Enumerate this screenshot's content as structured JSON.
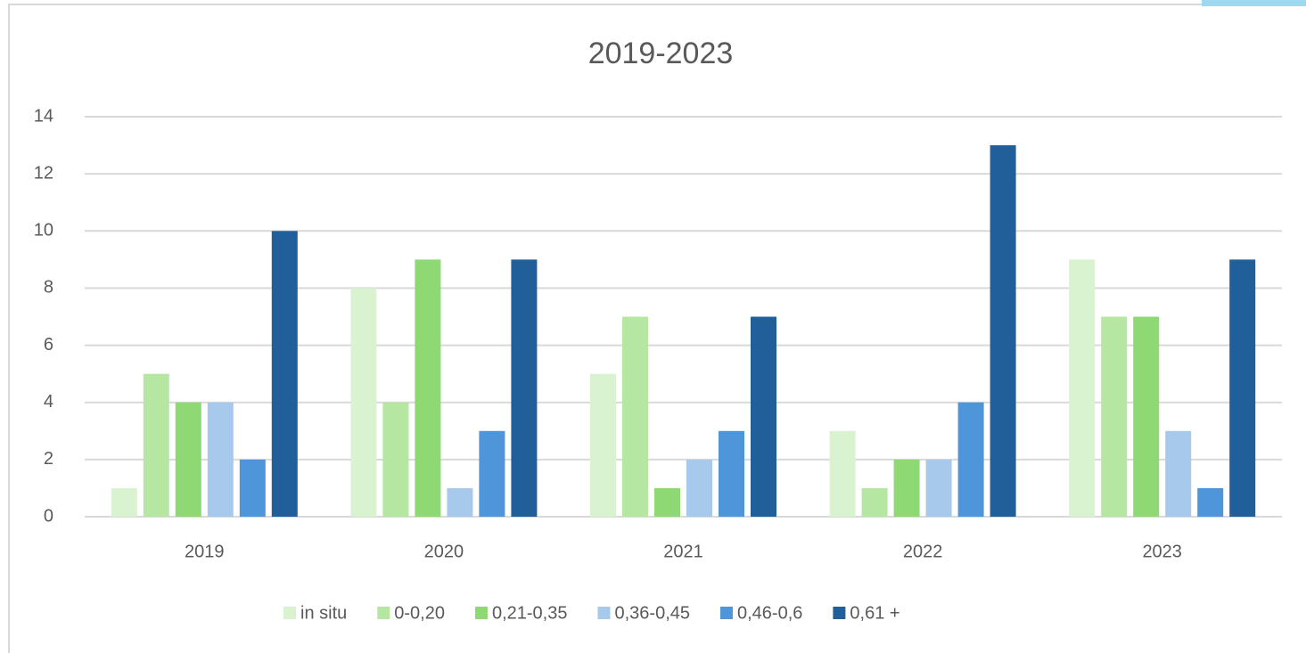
{
  "chart_data": {
    "type": "bar",
    "title": "2019-2023",
    "categories": [
      "2019",
      "2020",
      "2021",
      "2022",
      "2023"
    ],
    "series": [
      {
        "name": "in situ",
        "color": "#d9f2d0",
        "values": [
          1,
          8,
          5,
          3,
          9
        ]
      },
      {
        "name": "0-0,20",
        "color": "#b5e6a2",
        "values": [
          5,
          4,
          7,
          1,
          7
        ]
      },
      {
        "name": "0,21-0,35",
        "color": "#8ed973",
        "values": [
          4,
          9,
          1,
          2,
          7
        ]
      },
      {
        "name": "0,36-0,45",
        "color": "#a6c9ec",
        "values": [
          4,
          1,
          2,
          2,
          3
        ]
      },
      {
        "name": "0,46-0,6",
        "color": "#4e95d9",
        "values": [
          2,
          3,
          3,
          4,
          1
        ]
      },
      {
        "name": "0,61 +",
        "color": "#215f9a",
        "values": [
          10,
          9,
          7,
          13,
          9
        ]
      }
    ],
    "ylim": [
      0,
      14
    ],
    "yticks": [
      0,
      2,
      4,
      6,
      8,
      10,
      12,
      14
    ],
    "grid": true,
    "legend": "bottom"
  }
}
